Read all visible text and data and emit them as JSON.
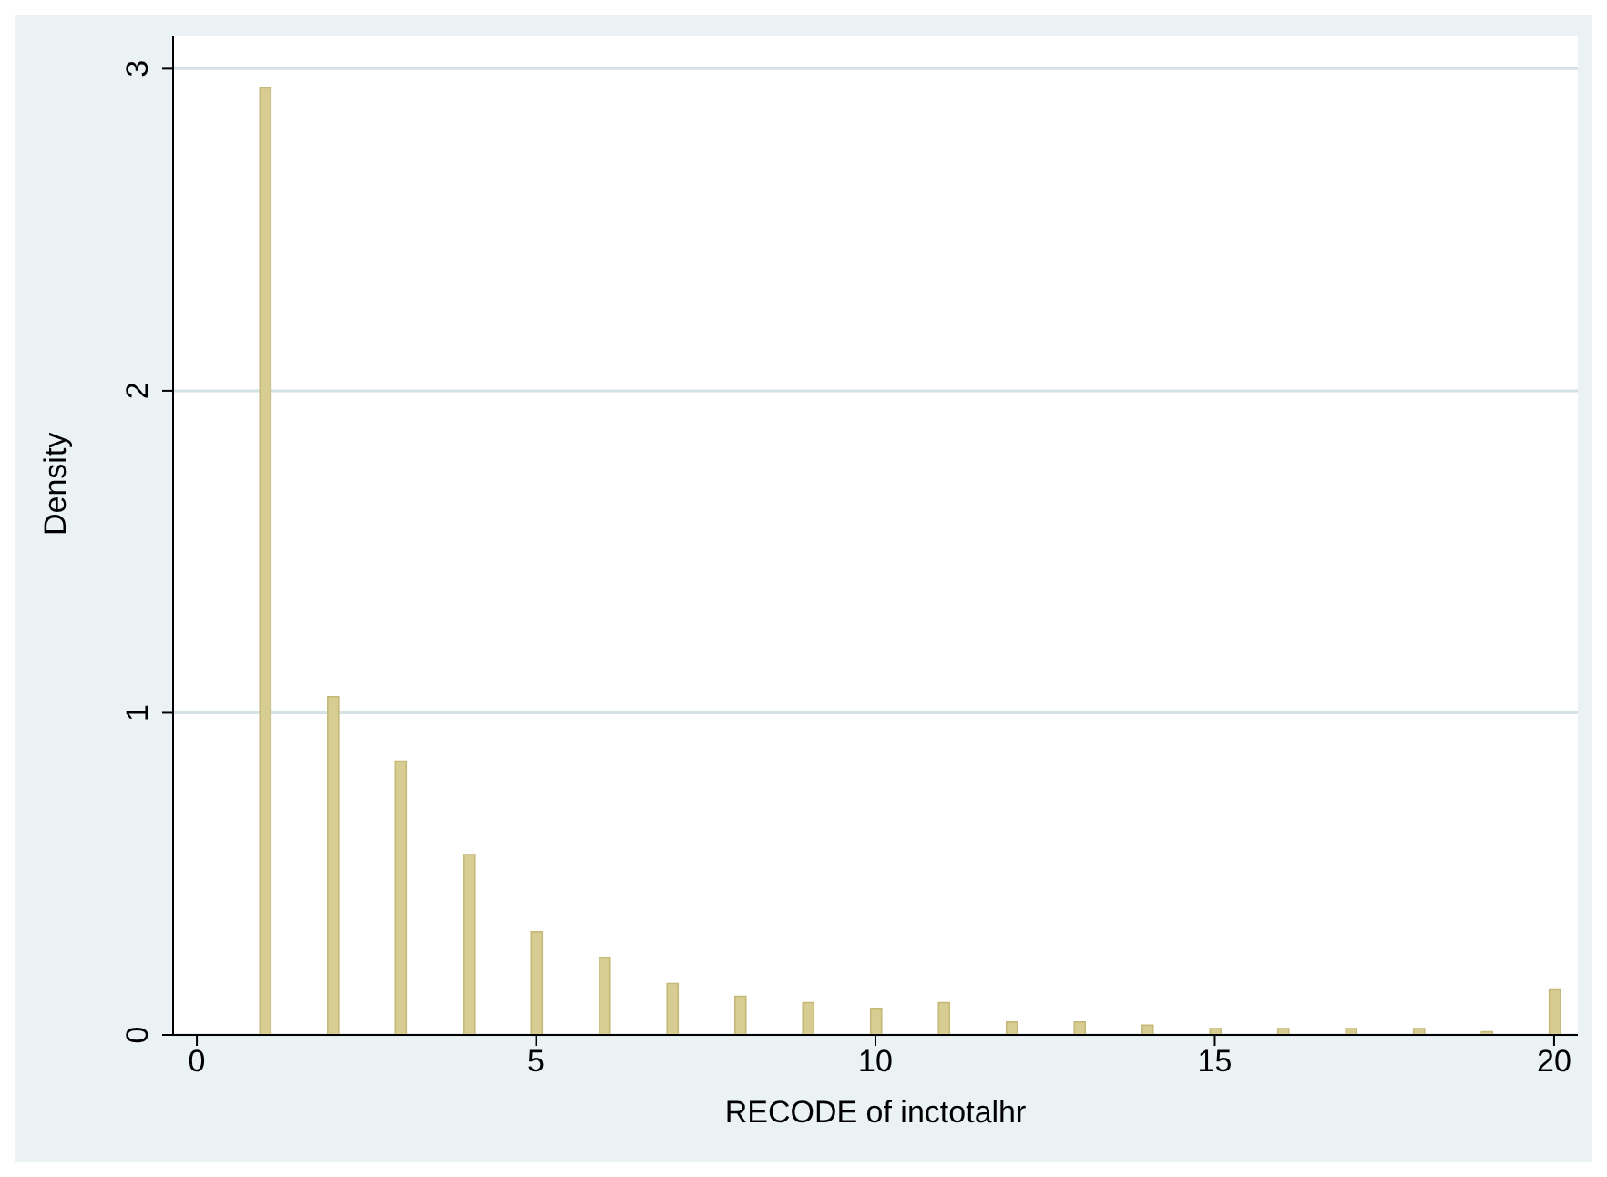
{
  "chart_data": {
    "type": "bar",
    "xlabel": "RECODE of inctotalhr",
    "ylabel": "Density",
    "x": [
      1,
      2,
      3,
      4,
      5,
      6,
      7,
      8,
      9,
      10,
      11,
      12,
      13,
      14,
      15,
      16,
      17,
      18,
      19,
      20
    ],
    "values": [
      2.94,
      1.05,
      0.85,
      0.56,
      0.32,
      0.24,
      0.16,
      0.12,
      0.1,
      0.08,
      0.1,
      0.04,
      0.04,
      0.03,
      0.02,
      0.02,
      0.02,
      0.02,
      0.01,
      0.14
    ],
    "color": "#d7cd93",
    "xlim": [
      -0.35,
      20.35
    ],
    "xticks": [
      0,
      5,
      10,
      15,
      20
    ],
    "ylim": [
      0,
      3.1
    ],
    "yticks": [
      0,
      1,
      2,
      3
    ],
    "grid": "y",
    "legend": false
  }
}
